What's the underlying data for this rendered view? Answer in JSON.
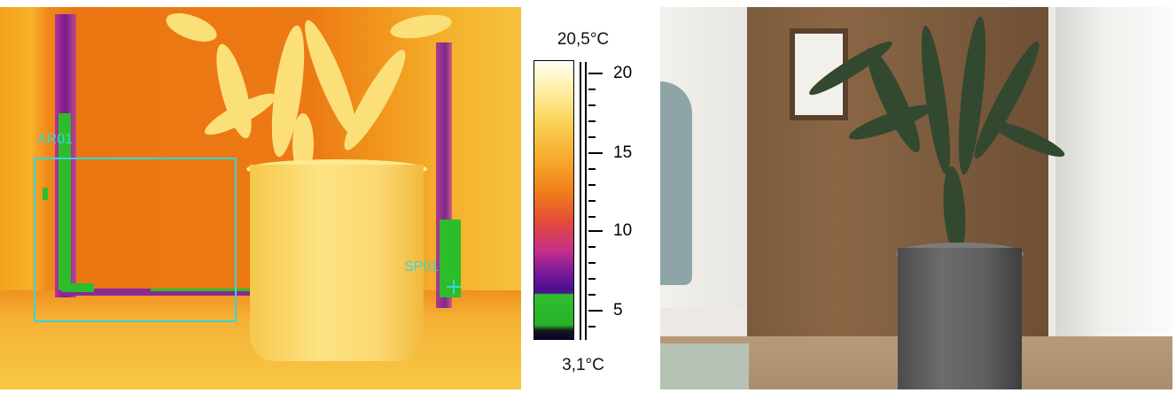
{
  "thermal": {
    "roi_area_label": "AR01",
    "spot_label": "SP01"
  },
  "temperature_scale": {
    "max_label": "20,5°C",
    "min_label": "3,1°C",
    "tick_values": [
      "20",
      "15",
      "10",
      "5"
    ]
  },
  "colors": {
    "overlay": "#38d4d8",
    "cold_region": "#2dbd2a"
  }
}
